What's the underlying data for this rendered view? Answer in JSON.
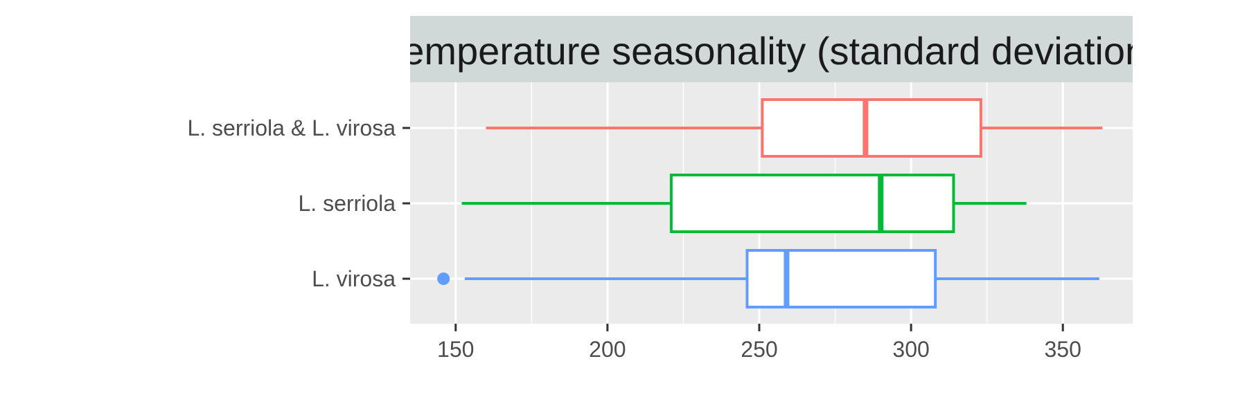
{
  "chart_data": {
    "type": "boxplot",
    "orientation": "horizontal",
    "facet_title": "Temperature seasonality (standard deviation)",
    "xlim": [
      135,
      373
    ],
    "x_ticks": [
      150,
      200,
      250,
      300,
      350
    ],
    "x_tick_labels": [
      "150",
      "200",
      "250",
      "300",
      "350"
    ],
    "categories": [
      "L. serriola & L. virosa",
      "L. serriola",
      "L. virosa"
    ],
    "series": [
      {
        "name": "L. serriola & L. virosa",
        "color": "#F8766D",
        "whisker_low": 160,
        "q1": 251,
        "median": 285,
        "q3": 323,
        "whisker_high": 363,
        "outliers": []
      },
      {
        "name": "L. serriola",
        "color": "#00BA38",
        "whisker_low": 152,
        "q1": 221,
        "median": 290,
        "q3": 314,
        "whisker_high": 338,
        "outliers": []
      },
      {
        "name": "L. virosa",
        "color": "#619CFF",
        "whisker_low": 153,
        "q1": 246,
        "median": 259,
        "q3": 308,
        "whisker_high": 362,
        "outliers": [
          146
        ]
      }
    ],
    "panel_background": "#EBEBEB",
    "strip_background": "#D1D9D8",
    "grid": true,
    "legend": "none"
  }
}
